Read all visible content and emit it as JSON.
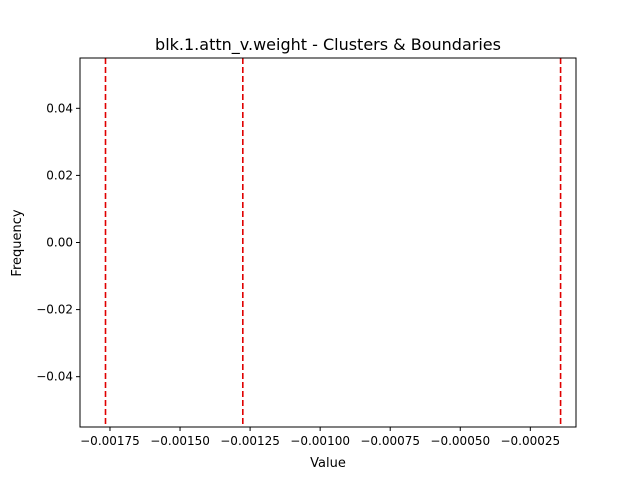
{
  "chart_data": {
    "type": "histogram",
    "title": "blk.1.attn_v.weight - Clusters & Boundaries",
    "xlabel": "Value",
    "ylabel": "Frequency",
    "xlim": [
      -0.001857,
      -8.7e-05
    ],
    "ylim": [
      -0.055,
      0.055
    ],
    "x_ticks": [
      -0.00175,
      -0.0015,
      -0.00125,
      -0.001,
      -0.00075,
      -0.0005,
      -0.00025
    ],
    "x_tick_labels": [
      "−0.00175",
      "−0.00150",
      "−0.00125",
      "−0.00100",
      "−0.00075",
      "−0.00050",
      "−0.00025"
    ],
    "y_ticks": [
      -0.04,
      -0.02,
      0.0,
      0.02,
      0.04
    ],
    "y_tick_labels": [
      "−0.04",
      "−0.02",
      "0.00",
      "0.02",
      "0.04"
    ],
    "boundaries": [
      -0.001766,
      -0.001276,
      -0.000142
    ],
    "boundary_color": "#e00000",
    "grid": false,
    "legend": "none"
  }
}
